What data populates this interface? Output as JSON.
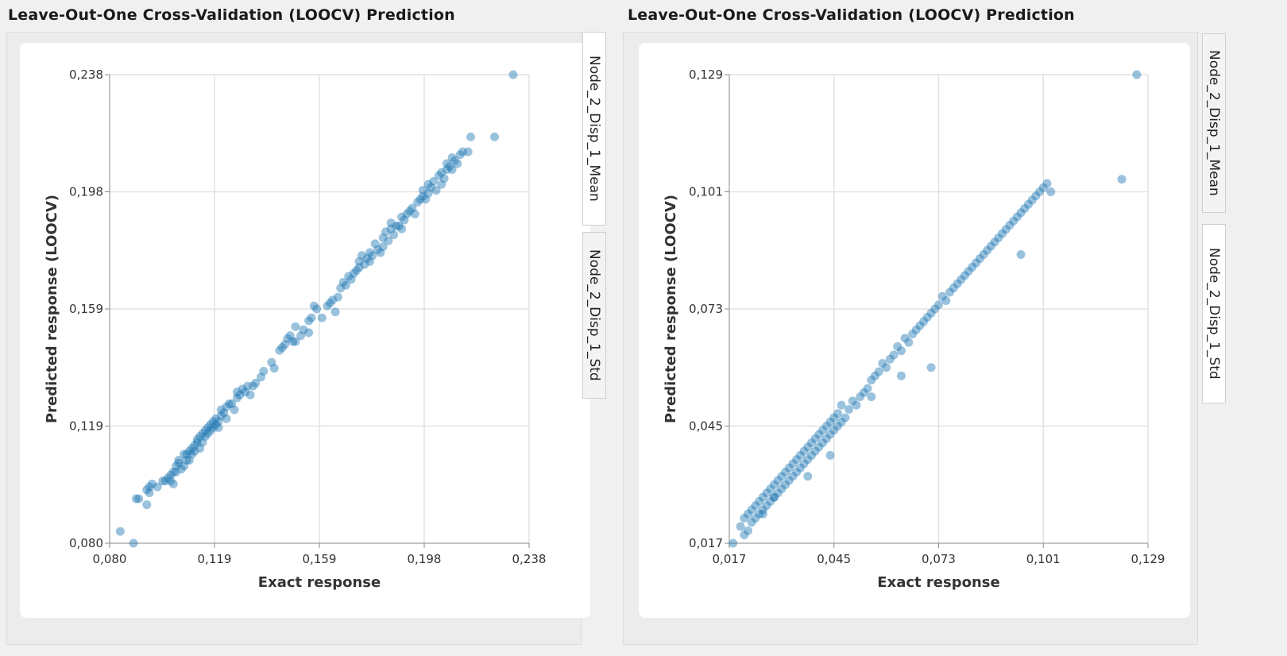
{
  "panels": [
    {
      "title": "Leave-Out-One Cross-Validation (LOOCV) Prediction",
      "tabs": [
        {
          "label": "Node_2_Disp_1_Mean",
          "active": true
        },
        {
          "label": "Node_2_Disp_1_Std",
          "active": false
        }
      ],
      "chart_data": {
        "type": "scatter",
        "xlabel": "Exact response",
        "ylabel": "Predicted response (LOOCV)",
        "xlim": [
          0.08,
          0.238
        ],
        "ylim": [
          0.08,
          0.238
        ],
        "xticks": [
          "0,080",
          "0,119",
          "0,159",
          "0,198",
          "0,238"
        ],
        "yticks": [
          "0,080",
          "0,119",
          "0,159",
          "0,198",
          "0,238"
        ],
        "grid": true,
        "point_color": "#1f77b4",
        "points": [
          [
            0.084,
            0.084
          ],
          [
            0.089,
            0.08
          ],
          [
            0.09,
            0.095
          ],
          [
            0.091,
            0.095
          ],
          [
            0.094,
            0.098
          ],
          [
            0.094,
            0.093
          ],
          [
            0.095,
            0.097
          ],
          [
            0.095,
            0.099
          ],
          [
            0.096,
            0.1
          ],
          [
            0.098,
            0.099
          ],
          [
            0.1,
            0.101
          ],
          [
            0.101,
            0.101
          ],
          [
            0.102,
            0.102
          ],
          [
            0.103,
            0.103
          ],
          [
            0.103,
            0.101
          ],
          [
            0.104,
            0.1
          ],
          [
            0.104,
            0.104
          ],
          [
            0.105,
            0.104
          ],
          [
            0.105,
            0.106
          ],
          [
            0.106,
            0.107
          ],
          [
            0.106,
            0.108
          ],
          [
            0.107,
            0.105
          ],
          [
            0.108,
            0.106
          ],
          [
            0.108,
            0.11
          ],
          [
            0.109,
            0.108
          ],
          [
            0.109,
            0.11
          ],
          [
            0.11,
            0.111
          ],
          [
            0.11,
            0.108
          ],
          [
            0.111,
            0.112
          ],
          [
            0.111,
            0.11
          ],
          [
            0.112,
            0.113
          ],
          [
            0.112,
            0.111
          ],
          [
            0.113,
            0.114
          ],
          [
            0.113,
            0.115
          ],
          [
            0.114,
            0.112
          ],
          [
            0.114,
            0.116
          ],
          [
            0.115,
            0.114
          ],
          [
            0.115,
            0.117
          ],
          [
            0.116,
            0.116
          ],
          [
            0.116,
            0.118
          ],
          [
            0.117,
            0.119
          ],
          [
            0.117,
            0.117
          ],
          [
            0.118,
            0.118
          ],
          [
            0.118,
            0.12
          ],
          [
            0.119,
            0.119
          ],
          [
            0.119,
            0.121
          ],
          [
            0.12,
            0.12
          ],
          [
            0.12,
            0.122
          ],
          [
            0.121,
            0.121
          ],
          [
            0.121,
            0.119
          ],
          [
            0.122,
            0.123
          ],
          [
            0.122,
            0.125
          ],
          [
            0.123,
            0.124
          ],
          [
            0.124,
            0.126
          ],
          [
            0.124,
            0.122
          ],
          [
            0.125,
            0.127
          ],
          [
            0.126,
            0.127
          ],
          [
            0.127,
            0.125
          ],
          [
            0.128,
            0.129
          ],
          [
            0.128,
            0.131
          ],
          [
            0.129,
            0.13
          ],
          [
            0.13,
            0.132
          ],
          [
            0.131,
            0.131
          ],
          [
            0.132,
            0.133
          ],
          [
            0.133,
            0.13
          ],
          [
            0.134,
            0.133
          ],
          [
            0.135,
            0.134
          ],
          [
            0.137,
            0.136
          ],
          [
            0.138,
            0.138
          ],
          [
            0.141,
            0.141
          ],
          [
            0.142,
            0.139
          ],
          [
            0.144,
            0.145
          ],
          [
            0.145,
            0.146
          ],
          [
            0.146,
            0.147
          ],
          [
            0.147,
            0.149
          ],
          [
            0.148,
            0.15
          ],
          [
            0.149,
            0.148
          ],
          [
            0.15,
            0.148
          ],
          [
            0.15,
            0.153
          ],
          [
            0.152,
            0.15
          ],
          [
            0.153,
            0.152
          ],
          [
            0.155,
            0.151
          ],
          [
            0.155,
            0.155
          ],
          [
            0.156,
            0.156
          ],
          [
            0.157,
            0.16
          ],
          [
            0.158,
            0.159
          ],
          [
            0.16,
            0.156
          ],
          [
            0.162,
            0.16
          ],
          [
            0.163,
            0.161
          ],
          [
            0.164,
            0.162
          ],
          [
            0.165,
            0.158
          ],
          [
            0.166,
            0.163
          ],
          [
            0.167,
            0.166
          ],
          [
            0.168,
            0.168
          ],
          [
            0.169,
            0.167
          ],
          [
            0.17,
            0.17
          ],
          [
            0.171,
            0.169
          ],
          [
            0.172,
            0.171
          ],
          [
            0.173,
            0.172
          ],
          [
            0.174,
            0.173
          ],
          [
            0.174,
            0.175
          ],
          [
            0.175,
            0.177
          ],
          [
            0.176,
            0.174
          ],
          [
            0.177,
            0.176
          ],
          [
            0.178,
            0.178
          ],
          [
            0.178,
            0.175
          ],
          [
            0.179,
            0.177
          ],
          [
            0.18,
            0.181
          ],
          [
            0.181,
            0.179
          ],
          [
            0.182,
            0.178
          ],
          [
            0.183,
            0.183
          ],
          [
            0.183,
            0.18
          ],
          [
            0.184,
            0.185
          ],
          [
            0.185,
            0.182
          ],
          [
            0.186,
            0.186
          ],
          [
            0.186,
            0.188
          ],
          [
            0.187,
            0.184
          ],
          [
            0.188,
            0.187
          ],
          [
            0.189,
            0.187
          ],
          [
            0.19,
            0.19
          ],
          [
            0.19,
            0.186
          ],
          [
            0.191,
            0.189
          ],
          [
            0.192,
            0.191
          ],
          [
            0.193,
            0.192
          ],
          [
            0.194,
            0.193
          ],
          [
            0.195,
            0.191
          ],
          [
            0.196,
            0.195
          ],
          [
            0.197,
            0.196
          ],
          [
            0.198,
            0.197
          ],
          [
            0.198,
            0.199
          ],
          [
            0.199,
            0.196
          ],
          [
            0.2,
            0.198
          ],
          [
            0.2,
            0.201
          ],
          [
            0.201,
            0.2
          ],
          [
            0.202,
            0.202
          ],
          [
            0.203,
            0.199
          ],
          [
            0.204,
            0.204
          ],
          [
            0.205,
            0.201
          ],
          [
            0.205,
            0.205
          ],
          [
            0.206,
            0.203
          ],
          [
            0.207,
            0.206
          ],
          [
            0.207,
            0.208
          ],
          [
            0.208,
            0.207
          ],
          [
            0.209,
            0.206
          ],
          [
            0.209,
            0.21
          ],
          [
            0.21,
            0.209
          ],
          [
            0.211,
            0.208
          ],
          [
            0.212,
            0.211
          ],
          [
            0.213,
            0.212
          ],
          [
            0.215,
            0.212
          ],
          [
            0.216,
            0.217
          ],
          [
            0.225,
            0.217
          ],
          [
            0.232,
            0.238
          ]
        ]
      }
    },
    {
      "title": "Leave-Out-One Cross-Validation (LOOCV) Prediction",
      "tabs": [
        {
          "label": "Node_2_Disp_1_Mean",
          "active": false
        },
        {
          "label": "Node_2_Disp_1_Std",
          "active": true
        }
      ],
      "chart_data": {
        "type": "scatter",
        "xlabel": "Exact response",
        "ylabel": "Predicted response (LOOCV)",
        "xlim": [
          0.017,
          0.129
        ],
        "ylim": [
          0.017,
          0.129
        ],
        "xticks": [
          "0,017",
          "0,045",
          "0,073",
          "0,101",
          "0,129"
        ],
        "yticks": [
          "0,017",
          "0,045",
          "0,073",
          "0,101",
          "0,129"
        ],
        "grid": true,
        "point_color": "#1f77b4",
        "points": [
          [
            0.018,
            0.017
          ],
          [
            0.02,
            0.021
          ],
          [
            0.021,
            0.019
          ],
          [
            0.021,
            0.023
          ],
          [
            0.022,
            0.02
          ],
          [
            0.022,
            0.024
          ],
          [
            0.023,
            0.022
          ],
          [
            0.023,
            0.025
          ],
          [
            0.024,
            0.023
          ],
          [
            0.024,
            0.026
          ],
          [
            0.025,
            0.024
          ],
          [
            0.025,
            0.027
          ],
          [
            0.026,
            0.025
          ],
          [
            0.026,
            0.028
          ],
          [
            0.027,
            0.026
          ],
          [
            0.027,
            0.029
          ],
          [
            0.028,
            0.027
          ],
          [
            0.028,
            0.03
          ],
          [
            0.029,
            0.028
          ],
          [
            0.029,
            0.031
          ],
          [
            0.03,
            0.029
          ],
          [
            0.03,
            0.032
          ],
          [
            0.031,
            0.03
          ],
          [
            0.031,
            0.033
          ],
          [
            0.032,
            0.031
          ],
          [
            0.032,
            0.034
          ],
          [
            0.033,
            0.032
          ],
          [
            0.033,
            0.035
          ],
          [
            0.034,
            0.033
          ],
          [
            0.034,
            0.036
          ],
          [
            0.035,
            0.034
          ],
          [
            0.035,
            0.037
          ],
          [
            0.036,
            0.035
          ],
          [
            0.036,
            0.038
          ],
          [
            0.037,
            0.036
          ],
          [
            0.037,
            0.039
          ],
          [
            0.038,
            0.037
          ],
          [
            0.038,
            0.04
          ],
          [
            0.039,
            0.038
          ],
          [
            0.039,
            0.041
          ],
          [
            0.04,
            0.039
          ],
          [
            0.04,
            0.042
          ],
          [
            0.041,
            0.04
          ],
          [
            0.041,
            0.043
          ],
          [
            0.042,
            0.041
          ],
          [
            0.042,
            0.044
          ],
          [
            0.043,
            0.042
          ],
          [
            0.043,
            0.045
          ],
          [
            0.044,
            0.043
          ],
          [
            0.044,
            0.046
          ],
          [
            0.045,
            0.044
          ],
          [
            0.045,
            0.047
          ],
          [
            0.046,
            0.045
          ],
          [
            0.046,
            0.048
          ],
          [
            0.047,
            0.046
          ],
          [
            0.048,
            0.047
          ],
          [
            0.049,
            0.049
          ],
          [
            0.05,
            0.051
          ],
          [
            0.051,
            0.05
          ],
          [
            0.052,
            0.052
          ],
          [
            0.053,
            0.053
          ],
          [
            0.054,
            0.054
          ],
          [
            0.055,
            0.056
          ],
          [
            0.055,
            0.052
          ],
          [
            0.056,
            0.057
          ],
          [
            0.057,
            0.058
          ],
          [
            0.058,
            0.06
          ],
          [
            0.059,
            0.059
          ],
          [
            0.06,
            0.061
          ],
          [
            0.061,
            0.062
          ],
          [
            0.062,
            0.064
          ],
          [
            0.063,
            0.063
          ],
          [
            0.064,
            0.066
          ],
          [
            0.065,
            0.065
          ],
          [
            0.066,
            0.067
          ],
          [
            0.067,
            0.068
          ],
          [
            0.068,
            0.069
          ],
          [
            0.069,
            0.07
          ],
          [
            0.07,
            0.071
          ],
          [
            0.071,
            0.072
          ],
          [
            0.072,
            0.073
          ],
          [
            0.073,
            0.074
          ],
          [
            0.074,
            0.076
          ],
          [
            0.075,
            0.075
          ],
          [
            0.076,
            0.077
          ],
          [
            0.077,
            0.078
          ],
          [
            0.078,
            0.079
          ],
          [
            0.079,
            0.08
          ],
          [
            0.08,
            0.081
          ],
          [
            0.081,
            0.082
          ],
          [
            0.082,
            0.083
          ],
          [
            0.083,
            0.084
          ],
          [
            0.084,
            0.085
          ],
          [
            0.085,
            0.086
          ],
          [
            0.086,
            0.087
          ],
          [
            0.087,
            0.088
          ],
          [
            0.088,
            0.089
          ],
          [
            0.089,
            0.09
          ],
          [
            0.09,
            0.091
          ],
          [
            0.091,
            0.092
          ],
          [
            0.092,
            0.093
          ],
          [
            0.093,
            0.094
          ],
          [
            0.094,
            0.095
          ],
          [
            0.095,
            0.096
          ],
          [
            0.096,
            0.097
          ],
          [
            0.097,
            0.098
          ],
          [
            0.098,
            0.099
          ],
          [
            0.099,
            0.1
          ],
          [
            0.1,
            0.101
          ],
          [
            0.101,
            0.102
          ],
          [
            0.102,
            0.103
          ],
          [
            0.103,
            0.101
          ],
          [
            0.095,
            0.086
          ],
          [
            0.071,
            0.059
          ],
          [
            0.063,
            0.057
          ],
          [
            0.047,
            0.05
          ],
          [
            0.044,
            0.038
          ],
          [
            0.038,
            0.033
          ],
          [
            0.029,
            0.028
          ],
          [
            0.026,
            0.024
          ],
          [
            0.122,
            0.104
          ],
          [
            0.126,
            0.129
          ]
        ]
      }
    }
  ]
}
